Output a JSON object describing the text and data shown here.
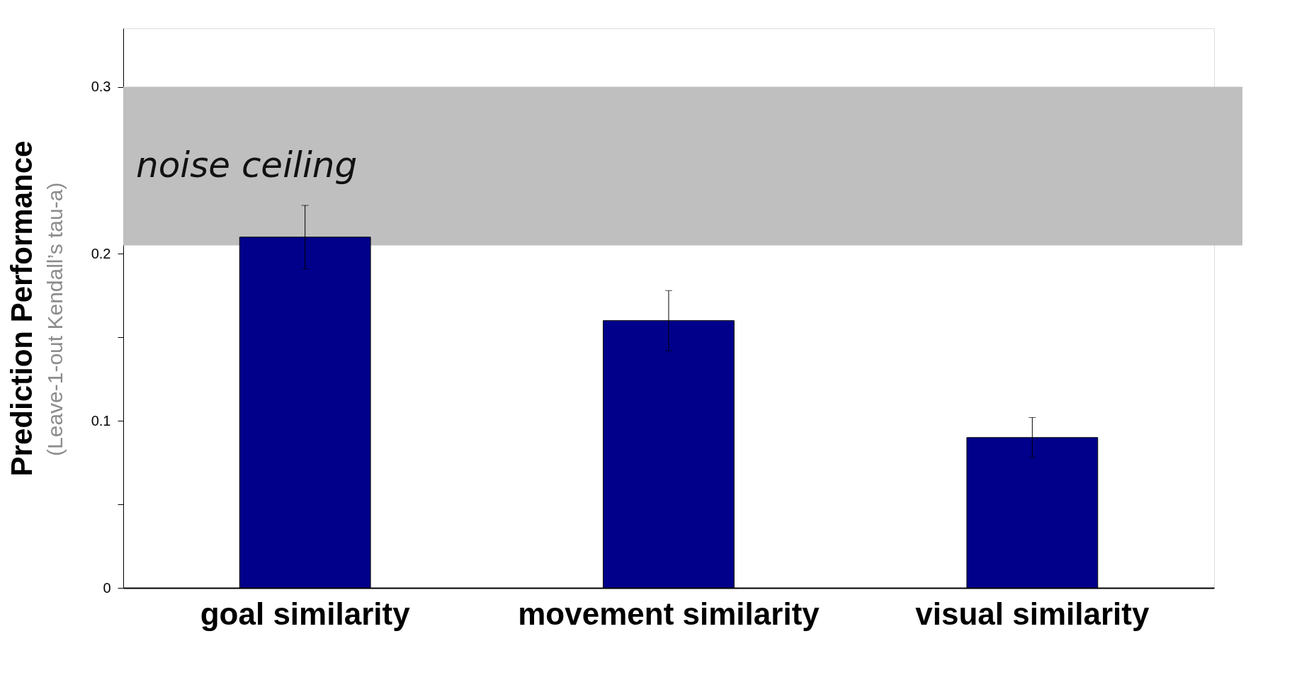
{
  "chart_data": {
    "type": "bar",
    "ylabel": "Prediction Performance",
    "categories": [
      "goal similarity",
      "movement similarity",
      "visual similarity"
    ],
    "values": [
      0.21,
      0.16,
      0.09
    ],
    "color": "#00008b",
    "errors": [
      0.019,
      0.018,
      0.012
    ],
    "ylim": [
      0,
      0.335
    ],
    "yticks": [
      0,
      {
        "value": 0.05,
        "label": null
      },
      0.1,
      {
        "value": 0.15,
        "label": null
      },
      0.2,
      0.3
    ],
    "bands": [
      {
        "axis": "y",
        "from": 0.205,
        "to": 0.3,
        "label": "noise ceiling",
        "color": "#bfbfbf"
      }
    ],
    "annotations": [
      "(Leave-1-out Kendall’s tau-a)"
    ],
    "grid": false
  }
}
